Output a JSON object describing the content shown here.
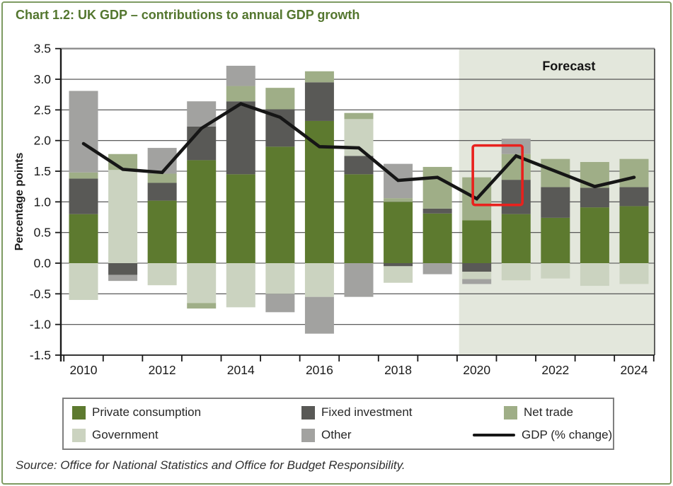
{
  "page": {
    "title": "Chart 1.2: UK GDP – contributions to annual GDP growth",
    "source": "Source: Office for National Statistics and Office for Budget Responsibility."
  },
  "chart_data": {
    "type": "bar",
    "subtype": "stacked-bar-with-line",
    "title": "Chart 1.2: UK GDP – contributions to annual GDP growth",
    "xlabel": "",
    "ylabel": "Percentage points",
    "ylim": [
      -1.5,
      3.5
    ],
    "ytick_step": 0.5,
    "grid": true,
    "categories": [
      2010,
      2011,
      2012,
      2013,
      2014,
      2015,
      2016,
      2017,
      2018,
      2019,
      2020,
      2021,
      2022,
      2023,
      2024
    ],
    "yticks": [
      {
        "label": "3.5",
        "value": 3.5
      },
      {
        "label": "3.0",
        "value": 3.0
      },
      {
        "label": "2.5",
        "value": 2.5
      },
      {
        "label": "2.0",
        "value": 2.0
      },
      {
        "label": "1.5",
        "value": 1.5
      },
      {
        "label": "1.0",
        "value": 1.0
      },
      {
        "label": "0.5",
        "value": 0.5
      },
      {
        "label": "0.0",
        "value": 0.0
      },
      {
        "label": "-0.5",
        "value": -0.5
      },
      {
        "label": "-1.0",
        "value": -1.0
      },
      {
        "label": "-1.5",
        "value": -1.5
      }
    ],
    "xticks": [
      {
        "label": "2010",
        "index": 0
      },
      {
        "label": "2012",
        "index": 2
      },
      {
        "label": "2014",
        "index": 4
      },
      {
        "label": "2016",
        "index": 6
      },
      {
        "label": "2018",
        "index": 8
      },
      {
        "label": "2020",
        "index": 10
      },
      {
        "label": "2022",
        "index": 12
      },
      {
        "label": "2024",
        "index": 14
      }
    ],
    "series": [
      {
        "name": "Private consumption",
        "color": "#5d7a2f",
        "values": [
          0.8,
          0.0,
          1.02,
          1.68,
          1.45,
          1.9,
          2.32,
          1.45,
          1.0,
          0.81,
          0.7,
          0.8,
          0.74,
          0.91,
          0.93
        ]
      },
      {
        "name": "Fixed investment",
        "color": "#595956",
        "values": [
          0.58,
          -0.19,
          0.29,
          0.55,
          1.19,
          0.61,
          0.63,
          0.3,
          -0.05,
          0.08,
          -0.14,
          0.56,
          0.5,
          0.32,
          0.31
        ]
      },
      {
        "name": "Government",
        "color": "#cbd3c0",
        "values": [
          -0.6,
          1.52,
          -0.36,
          -0.65,
          -0.72,
          -0.5,
          -0.55,
          0.6,
          -0.27,
          0.0,
          -0.12,
          -0.28,
          -0.25,
          -0.37,
          -0.34
        ]
      },
      {
        "name": "Net trade",
        "color": "#9fae87",
        "values": [
          0.1,
          0.26,
          0.15,
          -0.09,
          0.25,
          0.35,
          0.18,
          0.1,
          0.06,
          0.68,
          0.7,
          0.42,
          0.46,
          0.42,
          0.46
        ]
      },
      {
        "name": "Other",
        "color": "#a2a2a0",
        "values": [
          1.33,
          -0.1,
          0.42,
          0.41,
          0.33,
          -0.3,
          -0.6,
          -0.55,
          0.56,
          -0.18,
          -0.08,
          0.25,
          0.0,
          0.0,
          0.0
        ]
      }
    ],
    "gdp_line": {
      "name": "GDP (% change)",
      "color": "#161616",
      "values": [
        1.95,
        1.53,
        1.48,
        2.2,
        2.6,
        2.38,
        1.9,
        1.88,
        1.35,
        1.4,
        1.05,
        1.75,
        1.5,
        1.25,
        1.4
      ]
    },
    "forecast": {
      "label": "Forecast",
      "start_index": 9.55,
      "bg_color": "#e3e7dc"
    },
    "annotations": {
      "red_box": {
        "index_start": 9.9,
        "index_end": 11.16,
        "value_top": 1.92,
        "value_bottom": 0.95,
        "color": "#e9211d"
      }
    },
    "legend_position": "bottom"
  },
  "legend": {
    "rows": [
      [
        {
          "bind_series": 0
        },
        {
          "bind_series": 1
        },
        {
          "bind_series": 3
        }
      ],
      [
        {
          "bind_series": 2
        },
        {
          "bind_series": 4
        },
        {
          "gdp_line": true
        }
      ]
    ]
  }
}
